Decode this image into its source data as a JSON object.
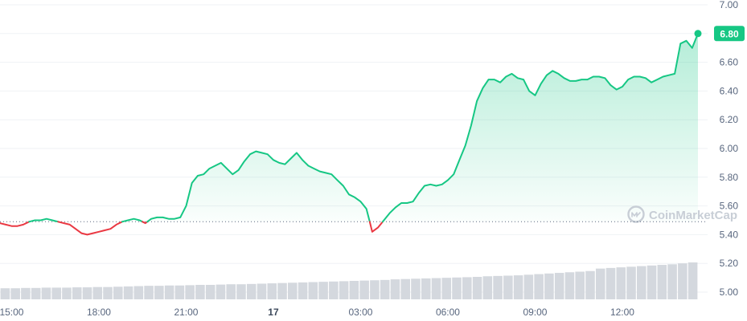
{
  "chart_data": {
    "type": "line",
    "title": "",
    "xlabel": "",
    "ylabel": "",
    "ylim": [
      5.0,
      7.0
    ],
    "x_ticks": [
      {
        "label": "15:00",
        "h": 0
      },
      {
        "label": "18:00",
        "h": 3
      },
      {
        "label": "21:00",
        "h": 6
      },
      {
        "label": "17",
        "h": 9,
        "bold": true
      },
      {
        "label": "03:00",
        "h": 12
      },
      {
        "label": "06:00",
        "h": 15
      },
      {
        "label": "09:00",
        "h": 18
      },
      {
        "label": "12:00",
        "h": 21
      }
    ],
    "y_ticks": [
      "7.00",
      "6.80",
      "6.60",
      "6.40",
      "6.20",
      "6.00",
      "5.80",
      "5.60",
      "5.40",
      "5.20",
      "5.00"
    ],
    "x_range_hours": [
      -0.4,
      23.6
    ],
    "reference_price": 5.49,
    "current_price": 6.8,
    "current_price_label": "6.80",
    "watermark": "CoinMarketCap",
    "colors": {
      "up": "#16c784",
      "down": "#ea3943",
      "grid": "#eff2f5",
      "reference": "#58667e",
      "volume": "#d4d8de",
      "tick_text": "#58667e"
    },
    "series": [
      {
        "points": [
          [
            -0.4,
            5.48
          ],
          [
            -0.2,
            5.47
          ],
          [
            0.0,
            5.46
          ],
          [
            0.2,
            5.46
          ],
          [
            0.4,
            5.47
          ],
          [
            0.6,
            5.49
          ],
          [
            0.8,
            5.5
          ],
          [
            1.0,
            5.5
          ],
          [
            1.2,
            5.51
          ],
          [
            1.4,
            5.5
          ],
          [
            1.6,
            5.49
          ],
          [
            1.8,
            5.48
          ],
          [
            2.0,
            5.47
          ],
          [
            2.2,
            5.44
          ],
          [
            2.4,
            5.41
          ],
          [
            2.6,
            5.4
          ],
          [
            2.8,
            5.41
          ],
          [
            3.0,
            5.42
          ],
          [
            3.2,
            5.43
          ],
          [
            3.4,
            5.44
          ],
          [
            3.6,
            5.47
          ],
          [
            3.8,
            5.49
          ],
          [
            4.0,
            5.5
          ],
          [
            4.2,
            5.51
          ],
          [
            4.4,
            5.5
          ],
          [
            4.6,
            5.48
          ],
          [
            4.8,
            5.51
          ],
          [
            5.0,
            5.52
          ],
          [
            5.2,
            5.52
          ],
          [
            5.4,
            5.51
          ],
          [
            5.6,
            5.51
          ],
          [
            5.8,
            5.52
          ],
          [
            6.0,
            5.6
          ],
          [
            6.2,
            5.76
          ],
          [
            6.4,
            5.81
          ],
          [
            6.6,
            5.82
          ],
          [
            6.8,
            5.86
          ],
          [
            7.0,
            5.88
          ],
          [
            7.2,
            5.9
          ],
          [
            7.4,
            5.86
          ],
          [
            7.6,
            5.82
          ],
          [
            7.8,
            5.85
          ],
          [
            8.0,
            5.91
          ],
          [
            8.2,
            5.96
          ],
          [
            8.4,
            5.98
          ],
          [
            8.6,
            5.97
          ],
          [
            8.8,
            5.96
          ],
          [
            9.0,
            5.92
          ],
          [
            9.2,
            5.9
          ],
          [
            9.4,
            5.89
          ],
          [
            9.6,
            5.93
          ],
          [
            9.8,
            5.97
          ],
          [
            10.0,
            5.92
          ],
          [
            10.2,
            5.88
          ],
          [
            10.4,
            5.86
          ],
          [
            10.6,
            5.84
          ],
          [
            10.8,
            5.83
          ],
          [
            11.0,
            5.82
          ],
          [
            11.2,
            5.78
          ],
          [
            11.4,
            5.74
          ],
          [
            11.6,
            5.68
          ],
          [
            11.8,
            5.66
          ],
          [
            12.0,
            5.63
          ],
          [
            12.2,
            5.58
          ],
          [
            12.4,
            5.42
          ],
          [
            12.6,
            5.45
          ],
          [
            12.8,
            5.5
          ],
          [
            13.0,
            5.55
          ],
          [
            13.2,
            5.59
          ],
          [
            13.4,
            5.62
          ],
          [
            13.6,
            5.62
          ],
          [
            13.8,
            5.63
          ],
          [
            14.0,
            5.69
          ],
          [
            14.2,
            5.74
          ],
          [
            14.4,
            5.75
          ],
          [
            14.6,
            5.74
          ],
          [
            14.8,
            5.75
          ],
          [
            15.0,
            5.78
          ],
          [
            15.2,
            5.82
          ],
          [
            15.4,
            5.92
          ],
          [
            15.6,
            6.02
          ],
          [
            15.8,
            6.16
          ],
          [
            16.0,
            6.33
          ],
          [
            16.2,
            6.42
          ],
          [
            16.4,
            6.48
          ],
          [
            16.6,
            6.48
          ],
          [
            16.8,
            6.46
          ],
          [
            17.0,
            6.5
          ],
          [
            17.2,
            6.52
          ],
          [
            17.4,
            6.49
          ],
          [
            17.6,
            6.48
          ],
          [
            17.8,
            6.4
          ],
          [
            18.0,
            6.37
          ],
          [
            18.2,
            6.45
          ],
          [
            18.4,
            6.51
          ],
          [
            18.6,
            6.54
          ],
          [
            18.8,
            6.52
          ],
          [
            19.0,
            6.49
          ],
          [
            19.2,
            6.47
          ],
          [
            19.4,
            6.47
          ],
          [
            19.6,
            6.48
          ],
          [
            19.8,
            6.48
          ],
          [
            20.0,
            6.5
          ],
          [
            20.2,
            6.5
          ],
          [
            20.4,
            6.49
          ],
          [
            20.6,
            6.44
          ],
          [
            20.8,
            6.41
          ],
          [
            21.0,
            6.43
          ],
          [
            21.2,
            6.48
          ],
          [
            21.4,
            6.5
          ],
          [
            21.6,
            6.5
          ],
          [
            21.8,
            6.49
          ],
          [
            22.0,
            6.46
          ],
          [
            22.2,
            6.48
          ],
          [
            22.4,
            6.5
          ],
          [
            22.6,
            6.51
          ],
          [
            22.8,
            6.52
          ],
          [
            23.0,
            6.73
          ],
          [
            23.2,
            6.75
          ],
          [
            23.4,
            6.7
          ],
          [
            23.6,
            6.8
          ]
        ]
      }
    ],
    "volume": [
      0.36,
      0.36,
      0.37,
      0.37,
      0.38,
      0.38,
      0.38,
      0.39,
      0.39,
      0.4,
      0.4,
      0.41,
      0.42,
      0.43,
      0.44,
      0.44,
      0.45,
      0.45,
      0.46,
      0.47,
      0.47,
      0.48,
      0.49,
      0.49,
      0.5,
      0.51,
      0.52,
      0.53,
      0.54,
      0.55,
      0.56,
      0.57,
      0.58,
      0.59,
      0.6,
      0.61,
      0.62,
      0.63,
      0.65,
      0.66,
      0.67,
      0.68,
      0.69,
      0.7,
      0.71,
      0.72,
      0.73,
      0.75,
      0.76,
      0.77,
      0.78,
      0.8,
      0.82,
      0.84,
      0.86,
      0.88,
      0.9,
      0.92,
      1.0,
      1.02,
      1.04,
      1.06,
      1.08,
      1.1,
      1.12,
      1.14,
      1.17,
      1.2
    ]
  }
}
